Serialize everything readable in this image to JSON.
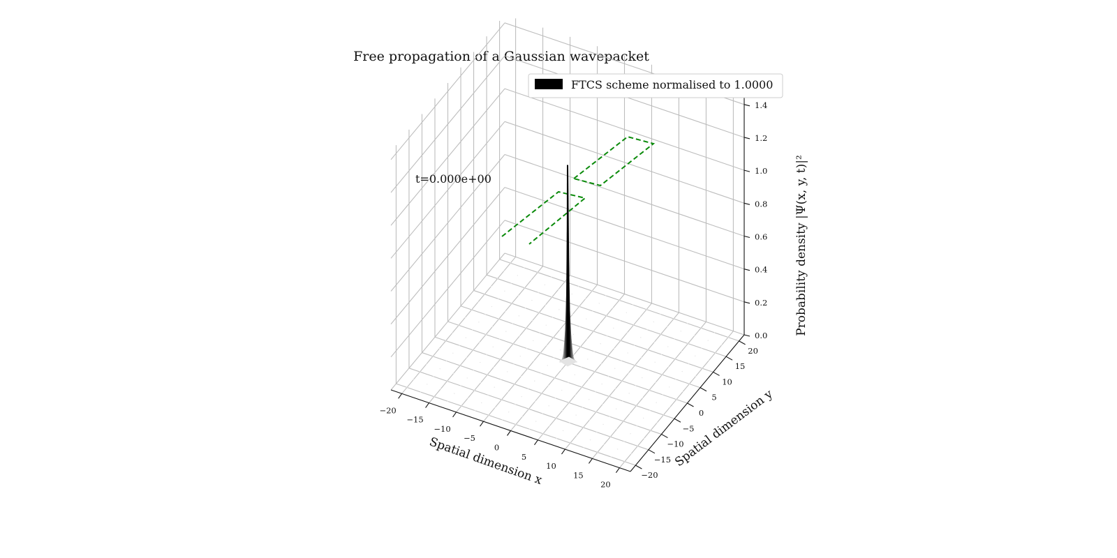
{
  "chart_data": {
    "type": "surface3d",
    "title": "Free propagation of a Gaussian wavepacket",
    "time_annotation": "t=0.000e+00",
    "legend": {
      "entries": [
        {
          "label": "FTCS scheme normalised to 1.0000",
          "color": "#000000"
        }
      ],
      "position": "top-right"
    },
    "axes": {
      "x": {
        "label": "Spatial dimension x",
        "ticks": [
          -20,
          -15,
          -10,
          -5,
          0,
          5,
          10,
          15,
          20
        ],
        "tick_labels": [
          "−20",
          "−15",
          "−10",
          "−5",
          "0",
          "5",
          "10",
          "15",
          "20"
        ],
        "range": [
          -22,
          22
        ]
      },
      "y": {
        "label": "Spatial dimension y",
        "ticks": [
          -20,
          -15,
          -10,
          -5,
          0,
          5,
          10,
          15,
          20
        ],
        "tick_labels": [
          "−20",
          "−15",
          "−10",
          "−5",
          "0",
          "5",
          "10",
          "15",
          "20"
        ],
        "range": [
          -22,
          22
        ]
      },
      "z": {
        "label": "Probability density |Ψ(x, y, t)|²",
        "ticks": [
          0.0,
          0.2,
          0.4,
          0.6,
          0.8,
          1.0,
          1.2,
          1.4
        ],
        "tick_labels": [
          "0.0",
          "0.2",
          "0.4",
          "0.6",
          "0.8",
          "1.0",
          "1.2",
          "1.4"
        ],
        "range": [
          0,
          1.45
        ]
      }
    },
    "surface": {
      "description_series": "Gaussian wavepacket centred near origin",
      "peak_value": 1.2,
      "center_x": 0,
      "center_y": 0,
      "colormap": "gray"
    },
    "barrier_outline": {
      "style": "dashed",
      "color": "#0a8a0a"
    },
    "grid": true
  }
}
